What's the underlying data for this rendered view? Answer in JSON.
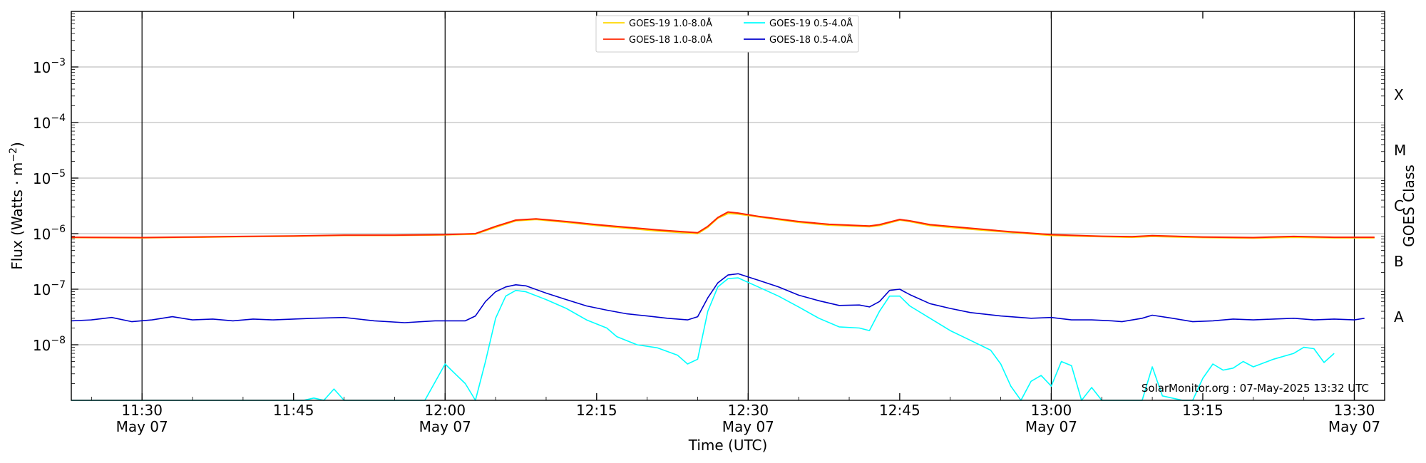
{
  "chart_data": {
    "type": "line",
    "xlabel": "Time (UTC)",
    "ylabel": "Flux (Watts · m",
    "ylabel_sup": "−2",
    "ylabel_close": ")",
    "y2label": "GOES Class",
    "yscale": "log",
    "ylim": [
      1e-09,
      0.01
    ],
    "xlim": [
      "11:23",
      "13:33"
    ],
    "grid": "horizontal",
    "legend_placement": "top-center",
    "credit": "SolarMonitor.org : 07-May-2025 13:32 UTC",
    "x_ticks": [
      {
        "time": "11:30",
        "label": "11:30",
        "date": "May 07"
      },
      {
        "time": "11:45",
        "label": "11:45",
        "date": ""
      },
      {
        "time": "12:00",
        "label": "12:00",
        "date": "May 07"
      },
      {
        "time": "12:15",
        "label": "12:15",
        "date": ""
      },
      {
        "time": "12:30",
        "label": "12:30",
        "date": "May 07"
      },
      {
        "time": "12:45",
        "label": "12:45",
        "date": ""
      },
      {
        "time": "13:00",
        "label": "13:00",
        "date": "May 07"
      },
      {
        "time": "13:15",
        "label": "13:15",
        "date": ""
      },
      {
        "time": "13:30",
        "label": "13:30",
        "date": "May 07"
      }
    ],
    "y_ticks": [
      {
        "exp": -8,
        "base": "10",
        "sup": "−8"
      },
      {
        "exp": -7,
        "base": "10",
        "sup": "−7"
      },
      {
        "exp": -6,
        "base": "10",
        "sup": "−6"
      },
      {
        "exp": -5,
        "base": "10",
        "sup": "−5"
      },
      {
        "exp": -4,
        "base": "10",
        "sup": "−4"
      },
      {
        "exp": -3,
        "base": "10",
        "sup": "−3"
      }
    ],
    "class_labels": [
      {
        "label": "A",
        "exp": -7.5
      },
      {
        "label": "B",
        "exp": -6.5
      },
      {
        "label": "C",
        "exp": -5.5
      },
      {
        "label": "M",
        "exp": -4.5
      },
      {
        "label": "X",
        "exp": -3.5
      }
    ],
    "series": [
      {
        "name": "GOES-19 1.0-8.0Å",
        "color": "#ffd700",
        "points": [
          [
            "11:23",
            8.5e-07
          ],
          [
            "11:30",
            8.4e-07
          ],
          [
            "11:35",
            8.6e-07
          ],
          [
            "11:40",
            8.8e-07
          ],
          [
            "11:45",
            9e-07
          ],
          [
            "11:50",
            9.3e-07
          ],
          [
            "11:55",
            9.3e-07
          ],
          [
            "12:00",
            9.5e-07
          ],
          [
            "12:03",
            9.8e-07
          ],
          [
            "12:05",
            1.3e-06
          ],
          [
            "12:07",
            1.7e-06
          ],
          [
            "12:09",
            1.8e-06
          ],
          [
            "12:12",
            1.6e-06
          ],
          [
            "12:15",
            1.4e-06
          ],
          [
            "12:18",
            1.25e-06
          ],
          [
            "12:21",
            1.12e-06
          ],
          [
            "12:24",
            1.03e-06
          ],
          [
            "12:25",
            1e-06
          ],
          [
            "12:26",
            1.3e-06
          ],
          [
            "12:27",
            1.9e-06
          ],
          [
            "12:28",
            2.3e-06
          ],
          [
            "12:29",
            2.25e-06
          ],
          [
            "12:31",
            2e-06
          ],
          [
            "12:35",
            1.6e-06
          ],
          [
            "12:38",
            1.42e-06
          ],
          [
            "12:42",
            1.33e-06
          ],
          [
            "12:43",
            1.4e-06
          ],
          [
            "12:45",
            1.75e-06
          ],
          [
            "12:46",
            1.65e-06
          ],
          [
            "12:48",
            1.4e-06
          ],
          [
            "12:52",
            1.2e-06
          ],
          [
            "12:56",
            1.05e-06
          ],
          [
            "13:00",
            9.3e-07
          ],
          [
            "13:05",
            8.8e-07
          ],
          [
            "13:08",
            8.6e-07
          ],
          [
            "13:10",
            8.9e-07
          ],
          [
            "13:15",
            8.5e-07
          ],
          [
            "13:20",
            8.3e-07
          ],
          [
            "13:24",
            8.6e-07
          ],
          [
            "13:28",
            8.4e-07
          ],
          [
            "13:32",
            8.4e-07
          ]
        ]
      },
      {
        "name": "GOES-18 1.0-8.0Å",
        "color": "#ff2400",
        "points": [
          [
            "11:23",
            8.6e-07
          ],
          [
            "11:30",
            8.5e-07
          ],
          [
            "11:35",
            8.7e-07
          ],
          [
            "11:40",
            8.9e-07
          ],
          [
            "11:45",
            9.1e-07
          ],
          [
            "11:50",
            9.4e-07
          ],
          [
            "11:55",
            9.4e-07
          ],
          [
            "12:00",
            9.6e-07
          ],
          [
            "12:03",
            1e-06
          ],
          [
            "12:05",
            1.35e-06
          ],
          [
            "12:07",
            1.75e-06
          ],
          [
            "12:09",
            1.85e-06
          ],
          [
            "12:12",
            1.65e-06
          ],
          [
            "12:15",
            1.45e-06
          ],
          [
            "12:18",
            1.3e-06
          ],
          [
            "12:21",
            1.17e-06
          ],
          [
            "12:24",
            1.07e-06
          ],
          [
            "12:25",
            1.04e-06
          ],
          [
            "12:26",
            1.35e-06
          ],
          [
            "12:27",
            1.95e-06
          ],
          [
            "12:28",
            2.45e-06
          ],
          [
            "12:29",
            2.35e-06
          ],
          [
            "12:31",
            2.05e-06
          ],
          [
            "12:35",
            1.65e-06
          ],
          [
            "12:38",
            1.47e-06
          ],
          [
            "12:42",
            1.37e-06
          ],
          [
            "12:43",
            1.45e-06
          ],
          [
            "12:45",
            1.8e-06
          ],
          [
            "12:46",
            1.7e-06
          ],
          [
            "12:48",
            1.45e-06
          ],
          [
            "12:52",
            1.25e-06
          ],
          [
            "12:56",
            1.08e-06
          ],
          [
            "13:00",
            9.6e-07
          ],
          [
            "13:05",
            9e-07
          ],
          [
            "13:08",
            8.8e-07
          ],
          [
            "13:10",
            9.2e-07
          ],
          [
            "13:15",
            8.7e-07
          ],
          [
            "13:20",
            8.5e-07
          ],
          [
            "13:24",
            8.9e-07
          ],
          [
            "13:28",
            8.6e-07
          ],
          [
            "13:32",
            8.6e-07
          ]
        ]
      },
      {
        "name": "GOES-19 0.5-4.0Å",
        "color": "#00ffff",
        "points": [
          [
            "11:23",
            1e-09
          ],
          [
            "11:46",
            1e-09
          ],
          [
            "11:47",
            1.1e-09
          ],
          [
            "11:48",
            1e-09
          ],
          [
            "11:49",
            1.6e-09
          ],
          [
            "11:50",
            1e-09
          ],
          [
            "11:58",
            1e-09
          ],
          [
            "12:00",
            4.5e-09
          ],
          [
            "12:01",
            3e-09
          ],
          [
            "12:02",
            2e-09
          ],
          [
            "12:03",
            1e-09
          ],
          [
            "12:04",
            5e-09
          ],
          [
            "12:05",
            3e-08
          ],
          [
            "12:06",
            7.5e-08
          ],
          [
            "12:07",
            9.5e-08
          ],
          [
            "12:08",
            9e-08
          ],
          [
            "12:10",
            6.5e-08
          ],
          [
            "12:12",
            4.5e-08
          ],
          [
            "12:14",
            2.8e-08
          ],
          [
            "12:16",
            2e-08
          ],
          [
            "12:17",
            1.4e-08
          ],
          [
            "12:19",
            1e-08
          ],
          [
            "12:21",
            8.8e-09
          ],
          [
            "12:23",
            6.5e-09
          ],
          [
            "12:24",
            4.5e-09
          ],
          [
            "12:25",
            5.5e-09
          ],
          [
            "12:26",
            4e-08
          ],
          [
            "12:27",
            1.1e-07
          ],
          [
            "12:28",
            1.55e-07
          ],
          [
            "12:29",
            1.6e-07
          ],
          [
            "12:31",
            1.1e-07
          ],
          [
            "12:33",
            7.5e-08
          ],
          [
            "12:35",
            4.8e-08
          ],
          [
            "12:37",
            3e-08
          ],
          [
            "12:39",
            2.1e-08
          ],
          [
            "12:41",
            2e-08
          ],
          [
            "12:42",
            1.8e-08
          ],
          [
            "12:43",
            4e-08
          ],
          [
            "12:44",
            7.5e-08
          ],
          [
            "12:45",
            7.5e-08
          ],
          [
            "12:46",
            5e-08
          ],
          [
            "12:48",
            3e-08
          ],
          [
            "12:50",
            1.8e-08
          ],
          [
            "12:52",
            1.2e-08
          ],
          [
            "12:54",
            8e-09
          ],
          [
            "12:55",
            4.5e-09
          ],
          [
            "12:56",
            1.8e-09
          ],
          [
            "12:57",
            1e-09
          ],
          [
            "12:58",
            2.2e-09
          ],
          [
            "12:59",
            2.8e-09
          ],
          [
            "13:00",
            1.8e-09
          ],
          [
            "13:01",
            5e-09
          ],
          [
            "13:02",
            4.2e-09
          ],
          [
            "13:03",
            1e-09
          ],
          [
            "13:04",
            1.7e-09
          ],
          [
            "13:05",
            1e-09
          ],
          [
            "13:09",
            1e-09
          ],
          [
            "13:10",
            4e-09
          ],
          [
            "13:11",
            1.2e-09
          ],
          [
            "13:13",
            1e-09
          ],
          [
            "13:14",
            1e-09
          ],
          [
            "13:15",
            2.5e-09
          ],
          [
            "13:16",
            4.5e-09
          ],
          [
            "13:17",
            3.5e-09
          ],
          [
            "13:18",
            3.8e-09
          ],
          [
            "13:19",
            5e-09
          ],
          [
            "13:20",
            4e-09
          ],
          [
            "13:22",
            5.5e-09
          ],
          [
            "13:24",
            7e-09
          ],
          [
            "13:25",
            9e-09
          ],
          [
            "13:26",
            8.5e-09
          ],
          [
            "13:27",
            4.8e-09
          ],
          [
            "13:28",
            7e-09
          ]
        ]
      },
      {
        "name": "GOES-18 0.5-4.0Å",
        "color": "#0000cd",
        "points": [
          [
            "11:23",
            2.7e-08
          ],
          [
            "11:25",
            2.8e-08
          ],
          [
            "11:27",
            3.1e-08
          ],
          [
            "11:29",
            2.6e-08
          ],
          [
            "11:31",
            2.8e-08
          ],
          [
            "11:33",
            3.2e-08
          ],
          [
            "11:35",
            2.8e-08
          ],
          [
            "11:37",
            2.9e-08
          ],
          [
            "11:39",
            2.7e-08
          ],
          [
            "11:41",
            2.9e-08
          ],
          [
            "11:43",
            2.8e-08
          ],
          [
            "11:45",
            2.9e-08
          ],
          [
            "11:47",
            3e-08
          ],
          [
            "11:50",
            3.1e-08
          ],
          [
            "11:53",
            2.7e-08
          ],
          [
            "11:56",
            2.5e-08
          ],
          [
            "11:59",
            2.7e-08
          ],
          [
            "12:02",
            2.7e-08
          ],
          [
            "12:03",
            3.3e-08
          ],
          [
            "12:04",
            6e-08
          ],
          [
            "12:05",
            9e-08
          ],
          [
            "12:06",
            1.1e-07
          ],
          [
            "12:07",
            1.2e-07
          ],
          [
            "12:08",
            1.15e-07
          ],
          [
            "12:10",
            8.5e-08
          ],
          [
            "12:12",
            6.5e-08
          ],
          [
            "12:14",
            5e-08
          ],
          [
            "12:16",
            4.2e-08
          ],
          [
            "12:18",
            3.6e-08
          ],
          [
            "12:20",
            3.3e-08
          ],
          [
            "12:22",
            3e-08
          ],
          [
            "12:24",
            2.8e-08
          ],
          [
            "12:25",
            3.2e-08
          ],
          [
            "12:26",
            7e-08
          ],
          [
            "12:27",
            1.3e-07
          ],
          [
            "12:28",
            1.8e-07
          ],
          [
            "12:29",
            1.9e-07
          ],
          [
            "12:31",
            1.45e-07
          ],
          [
            "12:33",
            1.1e-07
          ],
          [
            "12:35",
            7.8e-08
          ],
          [
            "12:37",
            6.2e-08
          ],
          [
            "12:39",
            5.1e-08
          ],
          [
            "12:41",
            5.2e-08
          ],
          [
            "12:42",
            4.8e-08
          ],
          [
            "12:43",
            6e-08
          ],
          [
            "12:44",
            9.5e-08
          ],
          [
            "12:45",
            1e-07
          ],
          [
            "12:46",
            8e-08
          ],
          [
            "12:48",
            5.5e-08
          ],
          [
            "12:50",
            4.5e-08
          ],
          [
            "12:52",
            3.8e-08
          ],
          [
            "12:55",
            3.3e-08
          ],
          [
            "12:58",
            3e-08
          ],
          [
            "13:00",
            3.1e-08
          ],
          [
            "13:02",
            2.8e-08
          ],
          [
            "13:04",
            2.8e-08
          ],
          [
            "13:06",
            2.7e-08
          ],
          [
            "13:07",
            2.6e-08
          ],
          [
            "13:09",
            3e-08
          ],
          [
            "13:10",
            3.4e-08
          ],
          [
            "13:12",
            3e-08
          ],
          [
            "13:14",
            2.6e-08
          ],
          [
            "13:16",
            2.7e-08
          ],
          [
            "13:18",
            2.9e-08
          ],
          [
            "13:20",
            2.8e-08
          ],
          [
            "13:22",
            2.9e-08
          ],
          [
            "13:24",
            3e-08
          ],
          [
            "13:26",
            2.8e-08
          ],
          [
            "13:28",
            2.9e-08
          ],
          [
            "13:30",
            2.8e-08
          ],
          [
            "13:31",
            3e-08
          ]
        ]
      }
    ]
  }
}
